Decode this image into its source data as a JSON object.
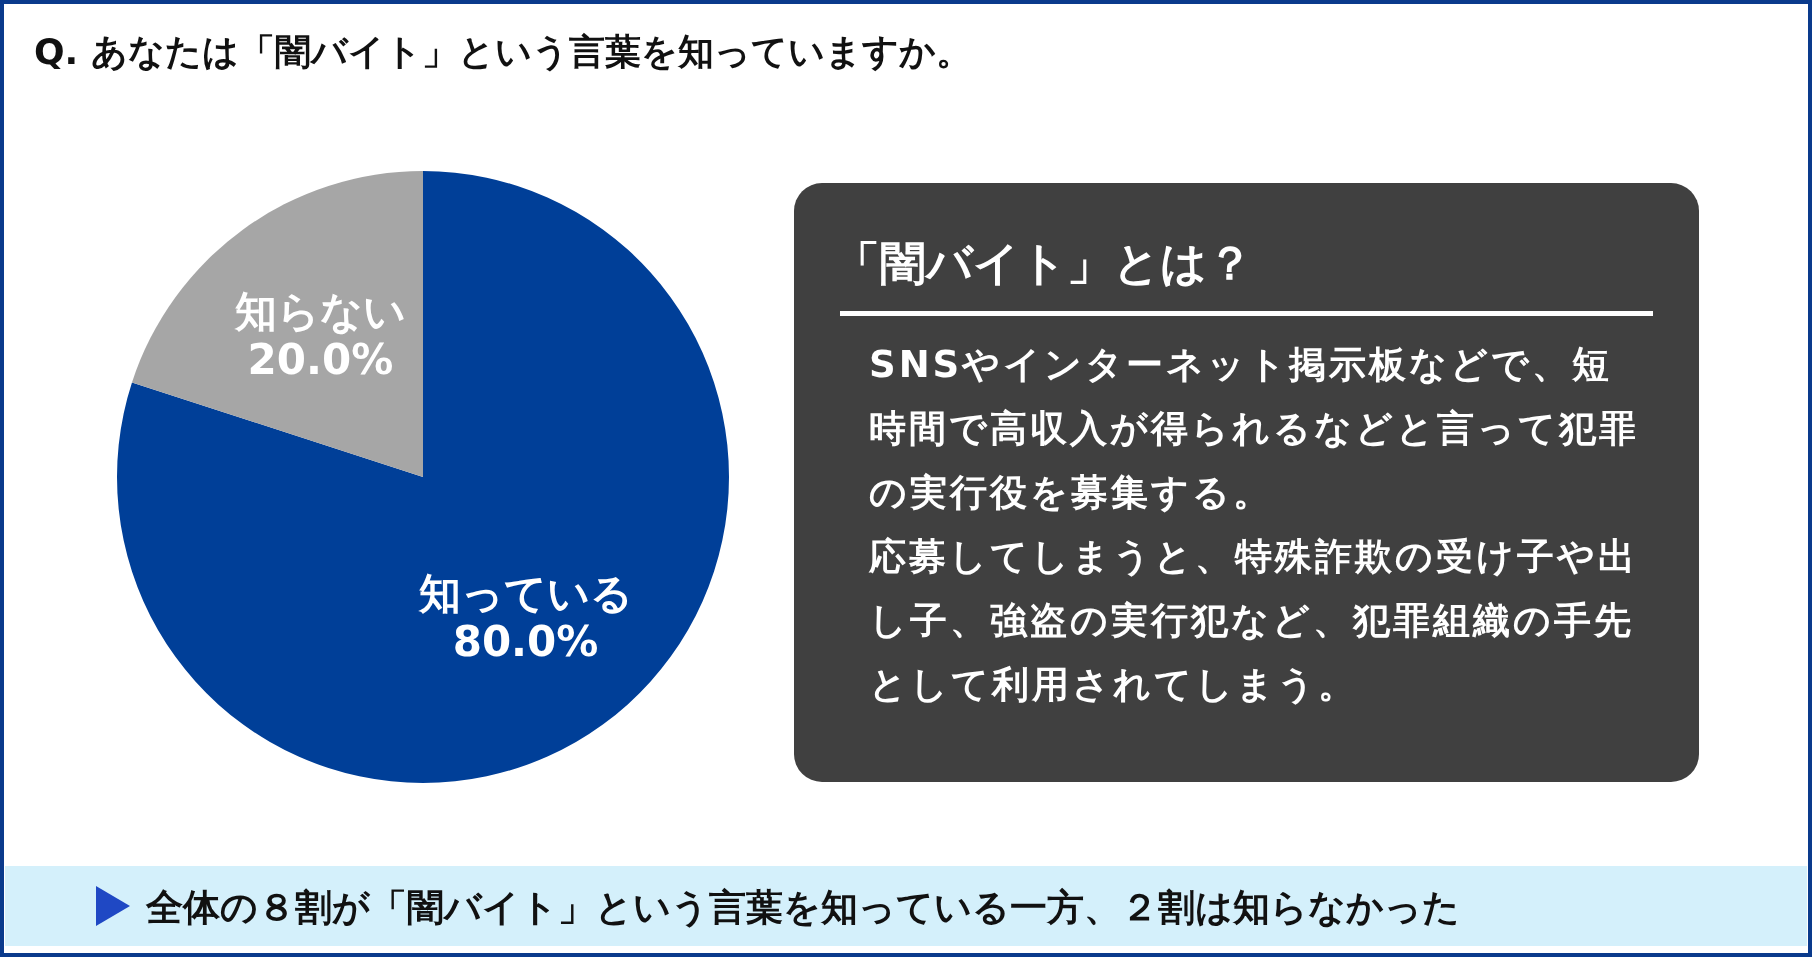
{
  "chart_data": [
    {
      "type": "pie",
      "title": "Q. あなたは「闇バイト」という言葉を知っていますか。",
      "categories": [
        "知っている",
        "知らない"
      ],
      "values": [
        80.0,
        20.0
      ],
      "value_labels": [
        "80.0%",
        "20.0%"
      ],
      "colors": [
        "#003f98",
        "#a6a6a6"
      ],
      "annotations": [
        "全体の８割が「闇バイト」という言葉を知っている一方、２割は知らなかった"
      ]
    },
    {
      "type": "other",
      "title": "「闇バイト」とは？",
      "annotations": [
        "SNSやインターネット掲示板などで、短時間で高収入が得られるなどと言って犯罪の実行役を募集する。",
        "応募してしまうと、特殊詐欺の受け子や出し子、強盗の実行犯など、犯罪組織の手先として利用されてしまう。"
      ]
    }
  ]
}
